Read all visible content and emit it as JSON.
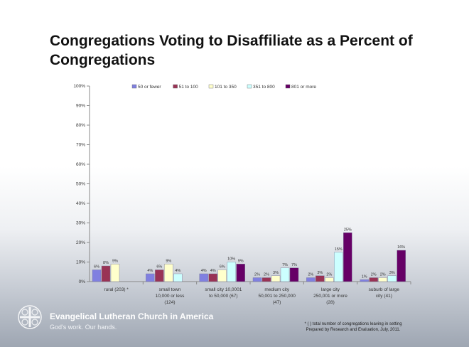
{
  "slide": {
    "title": "Congregations Voting to Disaffiliate as a Percent of Congregations"
  },
  "chart_data": {
    "type": "bar",
    "categories": [
      [
        "rural (203) *"
      ],
      [
        "small town",
        "10,000 or less",
        "(124)"
      ],
      [
        "small city 10,0001",
        "to 50,000 (67)"
      ],
      [
        "medium city",
        "50,001 to 250,000",
        "(47)"
      ],
      [
        "large city",
        "250,001 or more",
        "(28)"
      ],
      [
        "suburb of large",
        "city (41)"
      ]
    ],
    "series": [
      {
        "name": "50 or fewer",
        "color": "#8080e0",
        "values": [
          6,
          4,
          4,
          2,
          2,
          1
        ]
      },
      {
        "name": "51 to 100",
        "color": "#993355",
        "values": [
          8,
          6,
          4,
          2,
          3,
          2
        ]
      },
      {
        "name": "101 to 350",
        "color": "#ffffcc",
        "values": [
          9,
          9,
          6,
          3,
          2,
          2
        ]
      },
      {
        "name": "351 to 800",
        "color": "#ccffff",
        "values": [
          null,
          4,
          10,
          7,
          15,
          3
        ]
      },
      {
        "name": "801 or more",
        "color": "#660066",
        "values": [
          null,
          null,
          9,
          7,
          25,
          16
        ]
      }
    ],
    "data_labels": [
      [
        "6%",
        "8%",
        "9%",
        null,
        null
      ],
      [
        "4%",
        "6%",
        "9%",
        "4%",
        null
      ],
      [
        "4%",
        "4%",
        "6%",
        "10%",
        "9%"
      ],
      [
        "2%",
        "2%",
        "3%",
        "7%",
        "7%"
      ],
      [
        "2%",
        "3%",
        "2%",
        "15%",
        "25%"
      ],
      [
        "1%",
        "2%",
        "2%",
        "3%",
        "16%"
      ]
    ],
    "y_ticks": [
      "0%",
      "10%",
      "20%",
      "30%",
      "40%",
      "50%",
      "60%",
      "70%",
      "80%",
      "90%",
      "100%"
    ],
    "ylim": [
      0,
      100
    ],
    "legend_position": "top",
    "grid": false
  },
  "branding": {
    "name": "Evangelical Lutheran Church in America",
    "tagline": "God's work. Our hands."
  },
  "footnote": {
    "lines": [
      "* ( ) total number of congregations leaving in setting",
      "Prepared by Research and Evaluation, July, 2011."
    ]
  }
}
